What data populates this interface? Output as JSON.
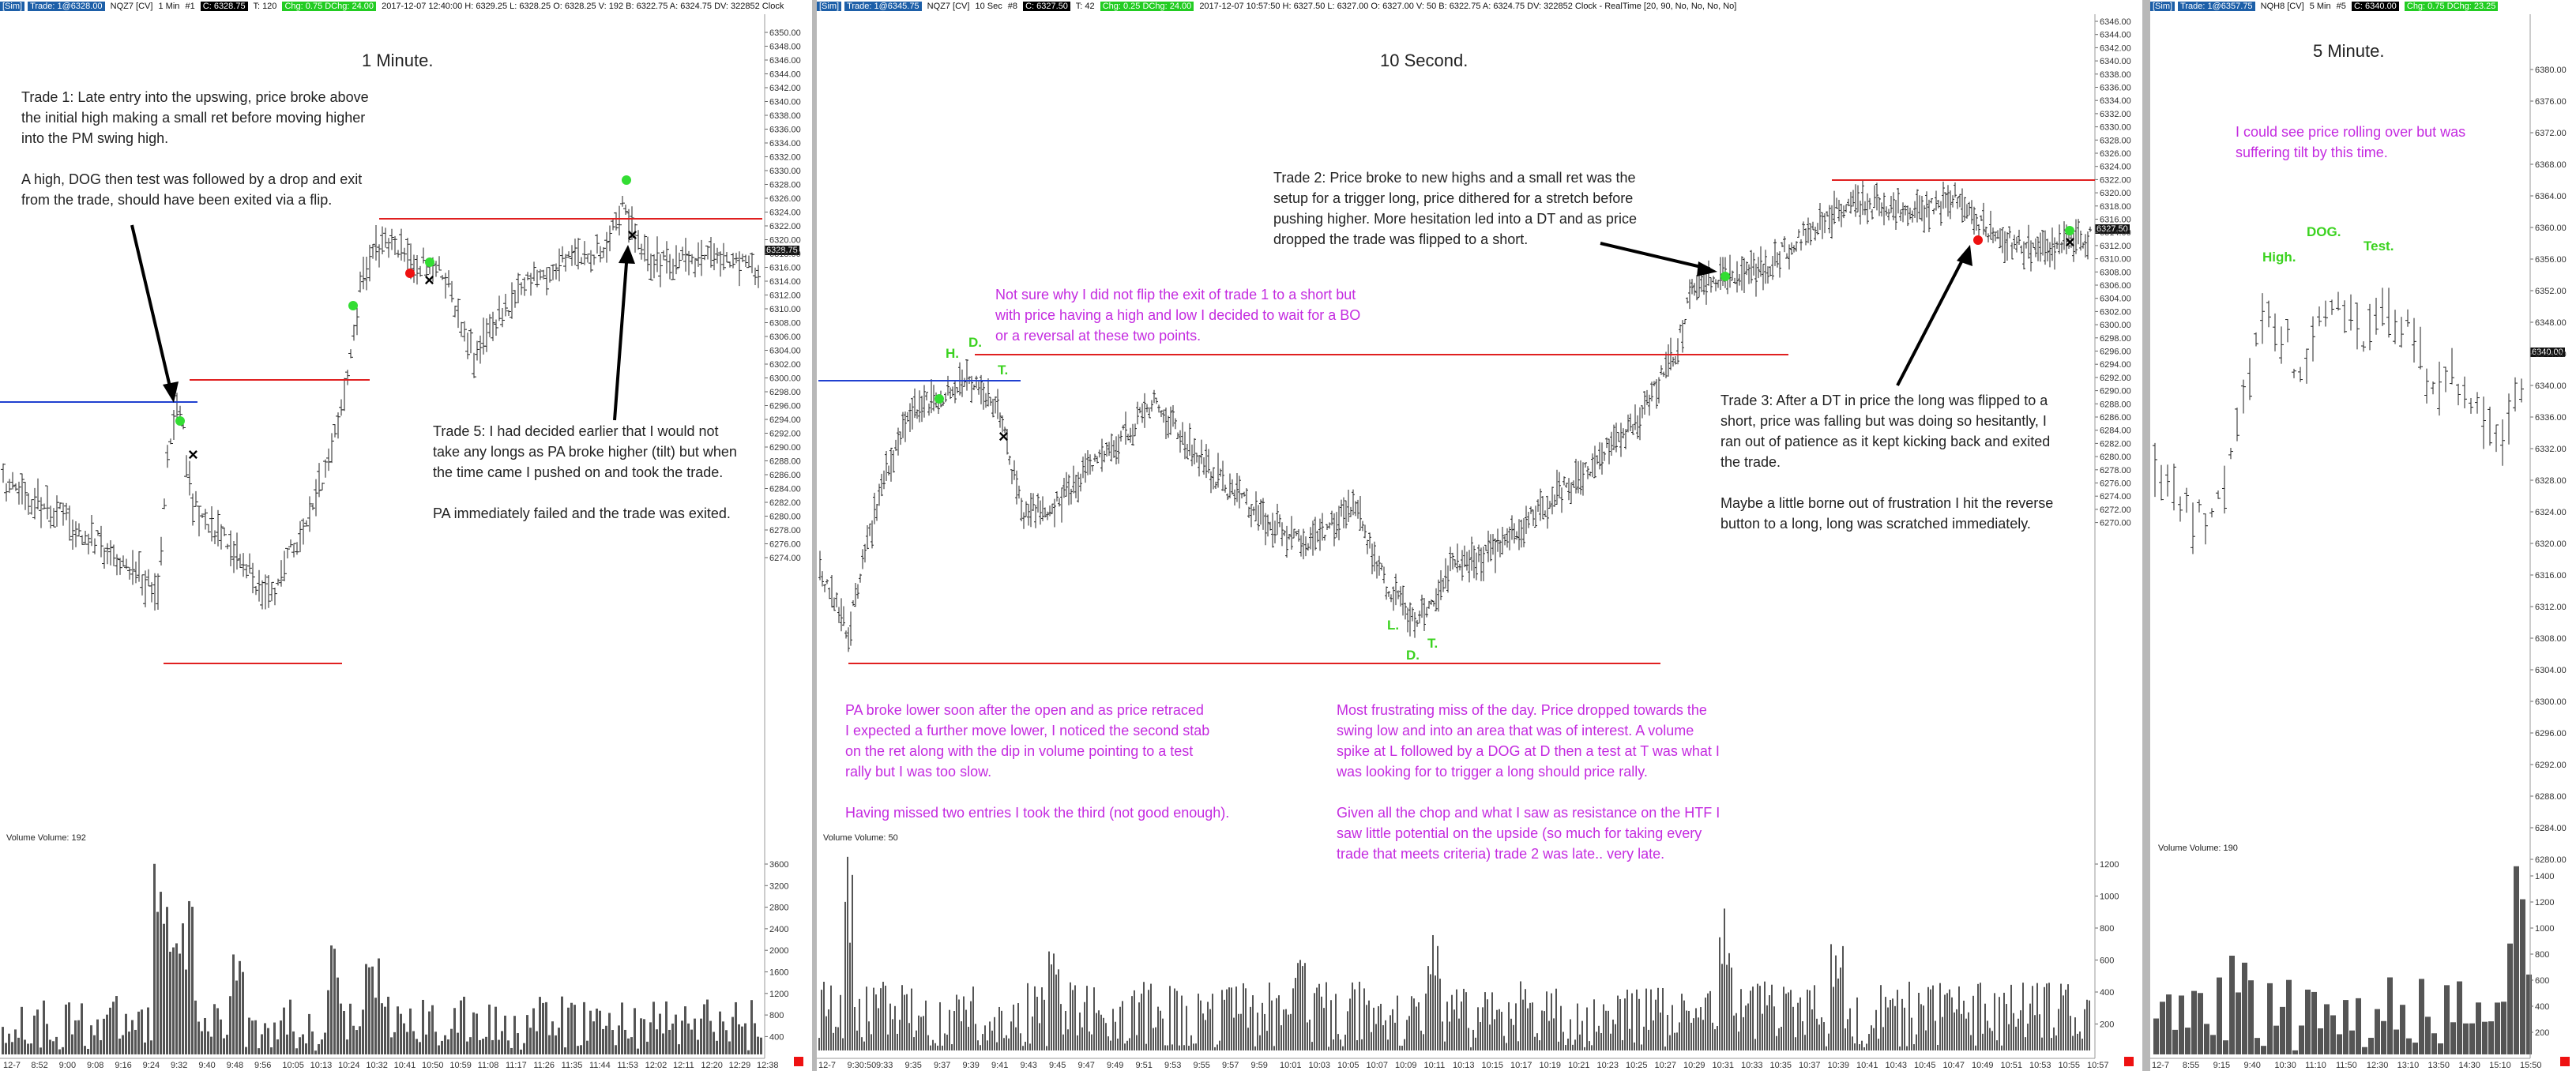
{
  "panels": [
    {
      "id": "p1",
      "header": {
        "mode": "[Sim]",
        "trade": "Trade: 1@6328.00",
        "symbol": "NQZ7 [CV]",
        "interval": "1 Min",
        "num": "#1",
        "close": "C: 6328.75",
        "ticks": "T: 120",
        "chg": "Chg: 0.75 DChg: 24.00",
        "info": "2017-12-07 12:40:00 H: 6329.25 L: 6328.25 O: 6328.25 V: 192 B: 6322.75 A: 6324.75 DV: 322852 Clock"
      },
      "title": "1 Minute.",
      "last_price": "6328.75",
      "volume_label": "Volume Volume: 192",
      "y_labels": [
        "6350.00",
        "6348.00",
        "6346.00",
        "6344.00",
        "6342.00",
        "6340.00",
        "6338.00",
        "6336.00",
        "6334.00",
        "6332.00",
        "6330.00",
        "6328.00",
        "6326.00",
        "6324.00",
        "6322.00",
        "6320.00",
        "6318.00",
        "6316.00",
        "6314.00",
        "6312.00",
        "6310.00",
        "6308.00",
        "6306.00",
        "6304.00",
        "6302.00",
        "6300.00",
        "6298.00",
        "6296.00",
        "6294.00",
        "6292.00",
        "6290.00",
        "6288.00",
        "6286.00",
        "6284.00",
        "6282.00",
        "6280.00",
        "6278.00",
        "6276.00",
        "6274.00"
      ],
      "vol_labels": [
        "3600",
        "3200",
        "2800",
        "2400",
        "2000",
        "1600",
        "1200",
        "800",
        "400"
      ],
      "x_labels": [
        "12-7",
        "8:52",
        "9:00",
        "9:08",
        "9:16",
        "9:24",
        "9:32",
        "9:40",
        "9:48",
        "9:56",
        "10:05",
        "10:13",
        "10:24",
        "10:32",
        "10:41",
        "10:50",
        "10:59",
        "11:08",
        "11:17",
        "11:26",
        "11:35",
        "11:44",
        "11:53",
        "12:02",
        "12:11",
        "12:20",
        "12:29",
        "12:38"
      ],
      "notes": [
        {
          "id": "trade1",
          "color": "dark",
          "text": "Trade 1:  Late entry into the upswing, price broke above\nthe initial high making a small ret before moving higher\ninto the PM swing high.\n\nA high, DOG then test was followed by a drop and exit\nfrom the trade, should have been exited via a flip."
        },
        {
          "id": "trade5",
          "color": "dark",
          "text": "Trade 5:  I had decided earlier that I would not\ntake any longs as PA broke higher (tilt) but when\nthe time came I pushed on and took the trade.\n\nPA immediately failed and the trade was exited."
        }
      ]
    },
    {
      "id": "p2",
      "header": {
        "mode": "[Sim]",
        "trade": "Trade: 1@6345.75",
        "symbol": "NQZ7 [CV]",
        "interval": "10 Sec",
        "num": "#8",
        "close": "C: 6327.50",
        "ticks": "T: 42",
        "chg": "Chg: 0.25 DChg: 24.00",
        "info": "2017-12-07 10:57:50 H: 6327.50 L: 6327.00 O: 6327.00 V: 50 B: 6322.75 A: 6324.75 DV: 322852 Clock - RealTime   [20, 90, No, No, No, No]"
      },
      "title": "10 Second.",
      "last_price": "6327.50",
      "volume_label": "Volume Volume: 50",
      "y_labels": [
        "6346.00",
        "6344.00",
        "6342.00",
        "6340.00",
        "6338.00",
        "6336.00",
        "6334.00",
        "6332.00",
        "6330.00",
        "6328.00",
        "6326.00",
        "6324.00",
        "6322.00",
        "6320.00",
        "6318.00",
        "6316.00",
        "6314.00",
        "6312.00",
        "6310.00",
        "6308.00",
        "6306.00",
        "6304.00",
        "6302.00",
        "6300.00",
        "6298.00",
        "6296.00",
        "6294.00",
        "6292.00",
        "6290.00",
        "6288.00",
        "6286.00",
        "6284.00",
        "6282.00",
        "6280.00",
        "6278.00",
        "6276.00",
        "6274.00",
        "6272.00",
        "6270.00"
      ],
      "vol_labels": [
        "1200",
        "1000",
        "800",
        "600",
        "400",
        "200"
      ],
      "x_labels": [
        "12-7",
        "9:30:50",
        "9:33",
        "9:35",
        "9:37",
        "9:39",
        "9:41",
        "9:43",
        "9:45",
        "9:47",
        "9:49",
        "9:51",
        "9:53",
        "9:55",
        "9:57",
        "9:59",
        "10:01",
        "10:03",
        "10:05",
        "10:07",
        "10:09",
        "10:11",
        "10:13",
        "10:15",
        "10:17",
        "10:19",
        "10:21",
        "10:23",
        "10:25",
        "10:27",
        "10:29",
        "10:31",
        "10:33",
        "10:35",
        "10:37",
        "10:39",
        "10:41",
        "10:43",
        "10:45",
        "10:47",
        "10:49",
        "10:51",
        "10:53",
        "10:55",
        "10:57"
      ],
      "notes": [
        {
          "id": "flip",
          "color": "mag",
          "text": "Not sure why I did not flip the exit of trade 1 to a short but\nwith price having a high and low I decided to wait for a BO\nor a reversal at these two points."
        },
        {
          "id": "trade2",
          "color": "dark",
          "text": "Trade 2:  Price broke to new highs and a small ret was the\nsetup for a trigger long, price dithered for a stretch before\npushing higher.  More hesitation led into a DT and as price\ndropped the trade was flipped to a short."
        },
        {
          "id": "trade3",
          "color": "dark",
          "text": "Trade 3:  After a DT in price the long was flipped to a\nshort, price was falling but was doing so hesitantly, I\nran out of patience as it kept kicking back and exited\nthe trade.\n\nMaybe a little borne out of frustration I hit the reverse\nbutton to a long, long was scratched immediately."
        },
        {
          "id": "pa",
          "color": "mag",
          "text": "PA broke lower soon after the open and as price retraced\nI expected a further move lower, I noticed the second stab\non the ret along with the dip in volume pointing to a test\nrally but I was too slow.\n\nHaving missed two entries I took the third (not good enough)."
        },
        {
          "id": "frustrating",
          "color": "mag",
          "text": "Most frustrating miss of the day.  Price dropped towards the\nswing low and into an area that was of interest.  A volume\nspike at L followed by a DOG at D then a test at T was what I\nwas looking for to trigger a long should price rally.\n\nGiven all the chop and what I saw as resistance on the HTF I\nsaw little potential on the upside (so much for taking every\ntrade that meets criteria) trade 2 was late.. very late."
        }
      ],
      "marks": {
        "h": "H.",
        "d": "D.",
        "t": "T.",
        "l": "L.",
        "d2": "D.",
        "t2": "T."
      }
    },
    {
      "id": "p3",
      "header": {
        "mode": "[Sim]",
        "trade": "Trade: 1@6357.75",
        "symbol": "NQH8 [CV]",
        "interval": "5 Min",
        "num": "#5",
        "close": "C: 6340.00",
        "chg": "Chg: 0.75 DChg: 23.25"
      },
      "title": "5 Minute.",
      "last_price": "6340.00",
      "volume_label": "Volume Volume: 190",
      "y_labels": [
        "6380.00",
        "6376.00",
        "6372.00",
        "6368.00",
        "6364.00",
        "6360.00",
        "6356.00",
        "6352.00",
        "6348.00",
        "6344.00",
        "6340.00",
        "6336.00",
        "6332.00",
        "6328.00",
        "6324.00",
        "6320.00",
        "6316.00",
        "6312.00",
        "6308.00",
        "6304.00",
        "6300.00",
        "6296.00",
        "6292.00",
        "6288.00",
        "6284.00",
        "6280.00"
      ],
      "vol_labels": [
        "1400",
        "1200",
        "1000",
        "800",
        "600",
        "400",
        "200"
      ],
      "x_labels": [
        "12-7",
        "8:55",
        "9:15",
        "9:40",
        "10:30",
        "11:10",
        "11:50",
        "12:30",
        "13:10",
        "13:50",
        "14:30",
        "15:10",
        "15:50"
      ],
      "notes": [
        {
          "id": "tilt",
          "color": "mag",
          "text": "I could see price rolling over but was\nsuffering tilt by this time."
        }
      ],
      "marks": {
        "high": "High.",
        "dog": "DOG.",
        "test": "Test."
      }
    }
  ],
  "colors": {
    "up_marker": "#33dd33",
    "down_marker": "#ee1111",
    "level_red": "#e02020",
    "level_blue": "#2040d0",
    "note_magenta": "#c42be0",
    "volume_bar": "#555555"
  }
}
